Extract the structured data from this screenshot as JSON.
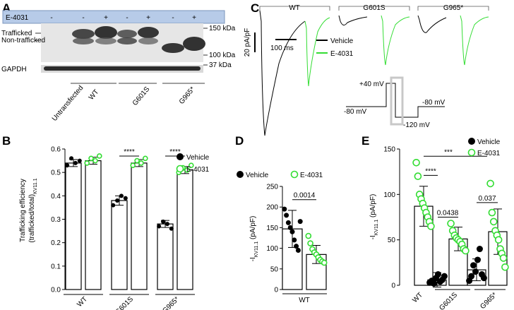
{
  "panel_labels": {
    "A": "A",
    "B": "B",
    "C": "C",
    "D": "D",
    "E": "E"
  },
  "colors": {
    "vehicle": "#000000",
    "e4031": "#33dd33",
    "blot_header": "#b7cbe8"
  },
  "panel_a": {
    "treatment_label": "E-4031",
    "treatment_signs": [
      "-",
      "-",
      "+",
      "-",
      "+",
      "-",
      "+"
    ],
    "band_labels": {
      "trafficked": "Trafficked",
      "non_trafficked": "Non-trafficked",
      "gapdh": "GAPDH"
    },
    "mw_markers": {
      "m150": "150 kDa",
      "m100": "100 kDa",
      "m37": "37 kDa"
    },
    "lanes": [
      "Untransfected",
      "WT",
      "G601S",
      "G965*"
    ]
  },
  "chart_data": [
    {
      "panel": "B",
      "type": "bar",
      "ylabel_line1": "Trafficking efficiency",
      "ylabel_line2": "(trafficked/total)",
      "ylabel_sub": "KV11.1",
      "ylim": [
        0,
        0.6
      ],
      "ytick_labels": [
        "0.0",
        "0.1",
        "0.2",
        "0.3",
        "0.4",
        "0.5",
        "0.6"
      ],
      "categories": [
        "WT",
        "G601S",
        "G965*"
      ],
      "series": [
        {
          "name": "Vehicle",
          "values": [
            0.54,
            0.38,
            0.28
          ],
          "errors": [
            0.015,
            0.02,
            0.015
          ],
          "points": [
            [
              0.53,
              0.56,
              0.54,
              0.55
            ],
            [
              0.36,
              0.38,
              0.4,
              0.39
            ],
            [
              0.27,
              0.29,
              0.28,
              0.26
            ]
          ]
        },
        {
          "name": "E-4031",
          "values": [
            0.55,
            0.54,
            0.51
          ],
          "errors": [
            0.015,
            0.015,
            0.015
          ],
          "points": [
            [
              0.54,
              0.56,
              0.55,
              0.57
            ],
            [
              0.53,
              0.55,
              0.54,
              0.56
            ],
            [
              0.5,
              0.52,
              0.51,
              0.53
            ]
          ]
        }
      ],
      "annotations": [
        "****",
        "****"
      ],
      "legend": "top-right"
    },
    {
      "panel": "D",
      "type": "bar",
      "ylabel": "-I (pA/pF)",
      "ylabel_sub": "KV11.1",
      "ylim": [
        0,
        250
      ],
      "ytick_labels": [
        "0",
        "50",
        "100",
        "150",
        "200",
        "250"
      ],
      "categories": [
        "WT"
      ],
      "series": [
        {
          "name": "Vehicle",
          "values": [
            147
          ],
          "errors": [
            45
          ],
          "points": [
            [
              195,
              180,
              162,
              150,
              140,
              120,
              105,
              95,
              165
            ]
          ]
        },
        {
          "name": "E-4031",
          "values": [
            85
          ],
          "errors": [
            22
          ],
          "points": [
            [
              130,
              112,
              98,
              90,
              85,
              78,
              72,
              68,
              65
            ]
          ]
        }
      ],
      "annotations": [
        "0.0014"
      ],
      "legend": "top"
    },
    {
      "panel": "E",
      "type": "bar",
      "ylabel": "-I (pA/pF)",
      "ylabel_sub": "KV11.1",
      "ylim": [
        0,
        150
      ],
      "ytick_labels": [
        "0",
        "50",
        "100",
        "150"
      ],
      "categories": [
        "WT",
        "G601S",
        "G965*"
      ],
      "series": [
        {
          "name": "Vehicle",
          "values": [
            null,
            6,
            17
          ],
          "errors": [
            null,
            8,
            12
          ],
          "points": [
            [],
            [
              3,
              5,
              2,
              8,
              12,
              4,
              6,
              10
            ],
            [
              5,
              10,
              22,
              15,
              28,
              40,
              12,
              8
            ]
          ]
        },
        {
          "name": "E-4031",
          "values": [
            87,
            51,
            59
          ],
          "errors": [
            22,
            13,
            25
          ],
          "points": [
            [
              135,
              120,
              100,
              95,
              90,
              85,
              80,
              75,
              70,
              65
            ],
            [
              68,
              60,
              55,
              52,
              50,
              48,
              45,
              40,
              38
            ],
            [
              112,
              80,
              70,
              60,
              55,
              50,
              40,
              35,
              30,
              20
            ]
          ]
        }
      ],
      "annotations": [
        "****",
        "***",
        "0.0438",
        "0.037"
      ],
      "legend": "top-right"
    }
  ],
  "panel_c": {
    "groups": [
      "WT",
      "G601S",
      "G965*"
    ],
    "scale_x": "100 ms",
    "scale_y": "20 pA/pF",
    "legend": {
      "vehicle": "Vehicle",
      "e4031": "E-4031"
    },
    "protocol_labels": {
      "p40": "+40 mV",
      "m80a": "-80 mV",
      "m80b": "-80 mV",
      "m120": "-120 mV"
    }
  }
}
